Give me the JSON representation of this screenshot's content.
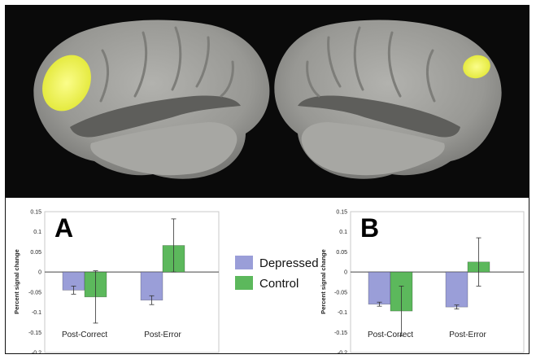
{
  "colors": {
    "depressed": "#9a9ed8",
    "control": "#5cb85c",
    "activation": "#eef25a",
    "cortex": "#9b9b98",
    "background": "#0a0a0a"
  },
  "legend": {
    "entries": [
      {
        "label": "Depressed",
        "color": "#9a9ed8"
      },
      {
        "label": "Control",
        "color": "#5cb85c"
      }
    ],
    "placement": "center, between panels"
  },
  "chart_data": [
    {
      "type": "bar",
      "panel_label": "A",
      "categories": [
        "Post-Correct",
        "Post-Error"
      ],
      "ylabel": "Percent signal change",
      "ylim": [
        -0.2,
        0.15
      ],
      "yticks": [
        "0.15",
        "0.1",
        "0.05",
        "0",
        "-0.05",
        "-0.1",
        "-0.15",
        "-0.2"
      ],
      "grid": false,
      "series": [
        {
          "name": "Depressed",
          "values": [
            -0.045,
            -0.07
          ],
          "errors": [
            0.01,
            0.011
          ]
        },
        {
          "name": "Control",
          "values": [
            -0.062,
            0.066
          ],
          "errors": [
            0.065,
            0.066
          ]
        }
      ]
    },
    {
      "type": "bar",
      "panel_label": "B",
      "categories": [
        "Post-Correct",
        "Post-Error"
      ],
      "ylabel": "Percent signal change",
      "ylim": [
        -0.2,
        0.15
      ],
      "yticks": [
        "0.15",
        "0.1",
        "0.05",
        "0",
        "-0.05",
        "-0.1",
        "-0.15",
        "-0.2"
      ],
      "grid": false,
      "series": [
        {
          "name": "Depressed",
          "values": [
            -0.08,
            -0.087
          ],
          "errors": [
            0.005,
            0.005
          ]
        },
        {
          "name": "Control",
          "values": [
            -0.097,
            0.025
          ],
          "errors": [
            0.062,
            0.06
          ]
        }
      ]
    }
  ]
}
